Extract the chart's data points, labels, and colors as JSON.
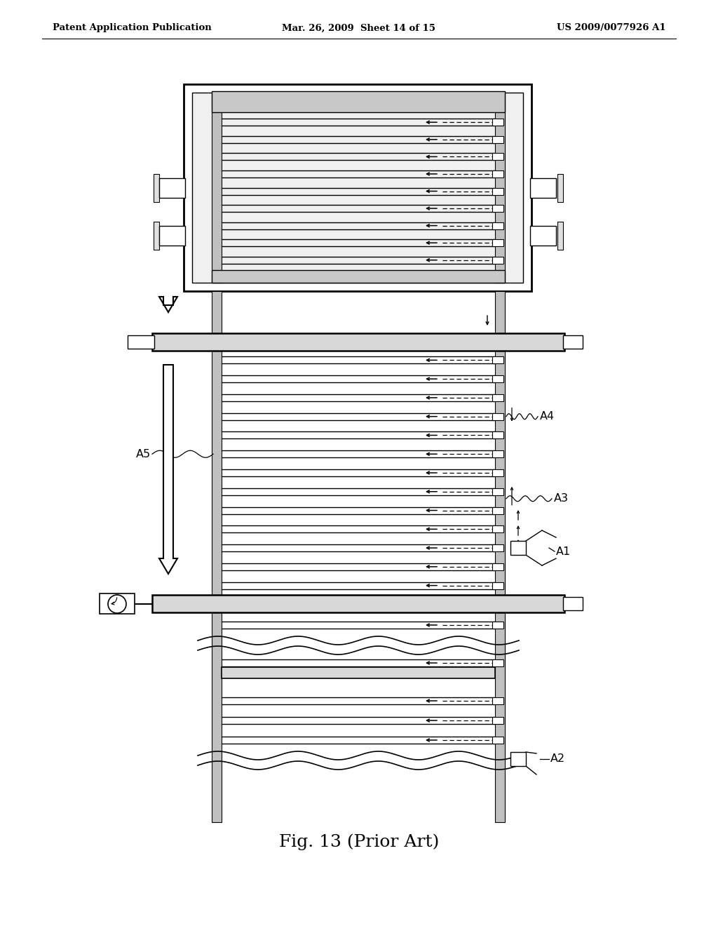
{
  "bg_color": "#ffffff",
  "header_left": "Patent Application Publication",
  "header_mid": "Mar. 26, 2009  Sheet 14 of 15",
  "header_right": "US 2009/0077926 A1",
  "caption": "Fig. 13 (Prior Art)",
  "fig_w": 10.24,
  "fig_h": 13.2,
  "dpi": 100
}
